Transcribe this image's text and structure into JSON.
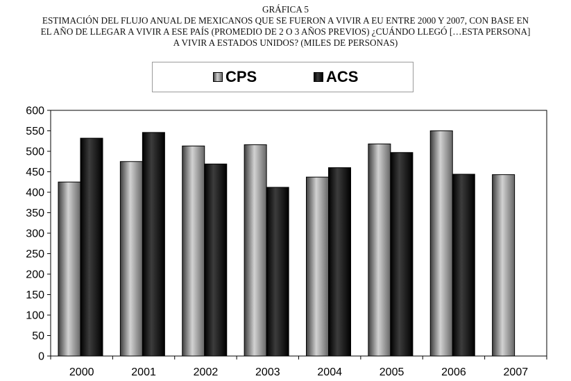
{
  "header": {
    "figure_number": "GRÁFICA 5",
    "title_lines": [
      "ESTIMACIÓN DEL FLUJO ANUAL DE MEXICANOS QUE SE FUERON A VIVIR A EU ENTRE 2000 Y 2007, CON BASE EN",
      "EL AÑO DE LLEGAR A VIVIR A ESE PAÍS (PROMEDIO DE 2 O 3 AÑOS PREVIOS) ¿CUÁNDO LLEGÓ […ESTA PERSONA]",
      "A VIVIR A ESTADOS UNIDOS? (MILES DE PERSONAS)"
    ]
  },
  "colors": {
    "cps": "#8c8c8c",
    "acs": "#111111",
    "axis": "#000000"
  },
  "chart_data": {
    "type": "bar",
    "title": "ESTIMACIÓN DEL FLUJO ANUAL DE MEXICANOS QUE SE FUERON A VIVIR A EU ENTRE 2000 Y 2007, CON BASE EN EL AÑO DE LLEGAR A VIVIR A ESE PAÍS (PROMEDIO DE 2 O 3 AÑOS PREVIOS) ¿CUÁNDO LLEGÓ […ESTA PERSONA] A VIVIR A ESTADOS UNIDOS? (MILES DE PERSONAS)",
    "categories": [
      "2000",
      "2001",
      "2002",
      "2003",
      "2004",
      "2005",
      "2006",
      "2007"
    ],
    "series": [
      {
        "name": "CPS",
        "values": [
          425,
          475,
          513,
          516,
          437,
          518,
          550,
          443
        ]
      },
      {
        "name": "ACS",
        "values": [
          532,
          546,
          469,
          412,
          460,
          497,
          444,
          null
        ]
      }
    ],
    "ylim": [
      0,
      600
    ],
    "yticks": [
      0,
      50,
      100,
      150,
      200,
      250,
      300,
      350,
      400,
      450,
      500,
      550,
      600
    ],
    "legend_position": "top",
    "grid": false
  }
}
